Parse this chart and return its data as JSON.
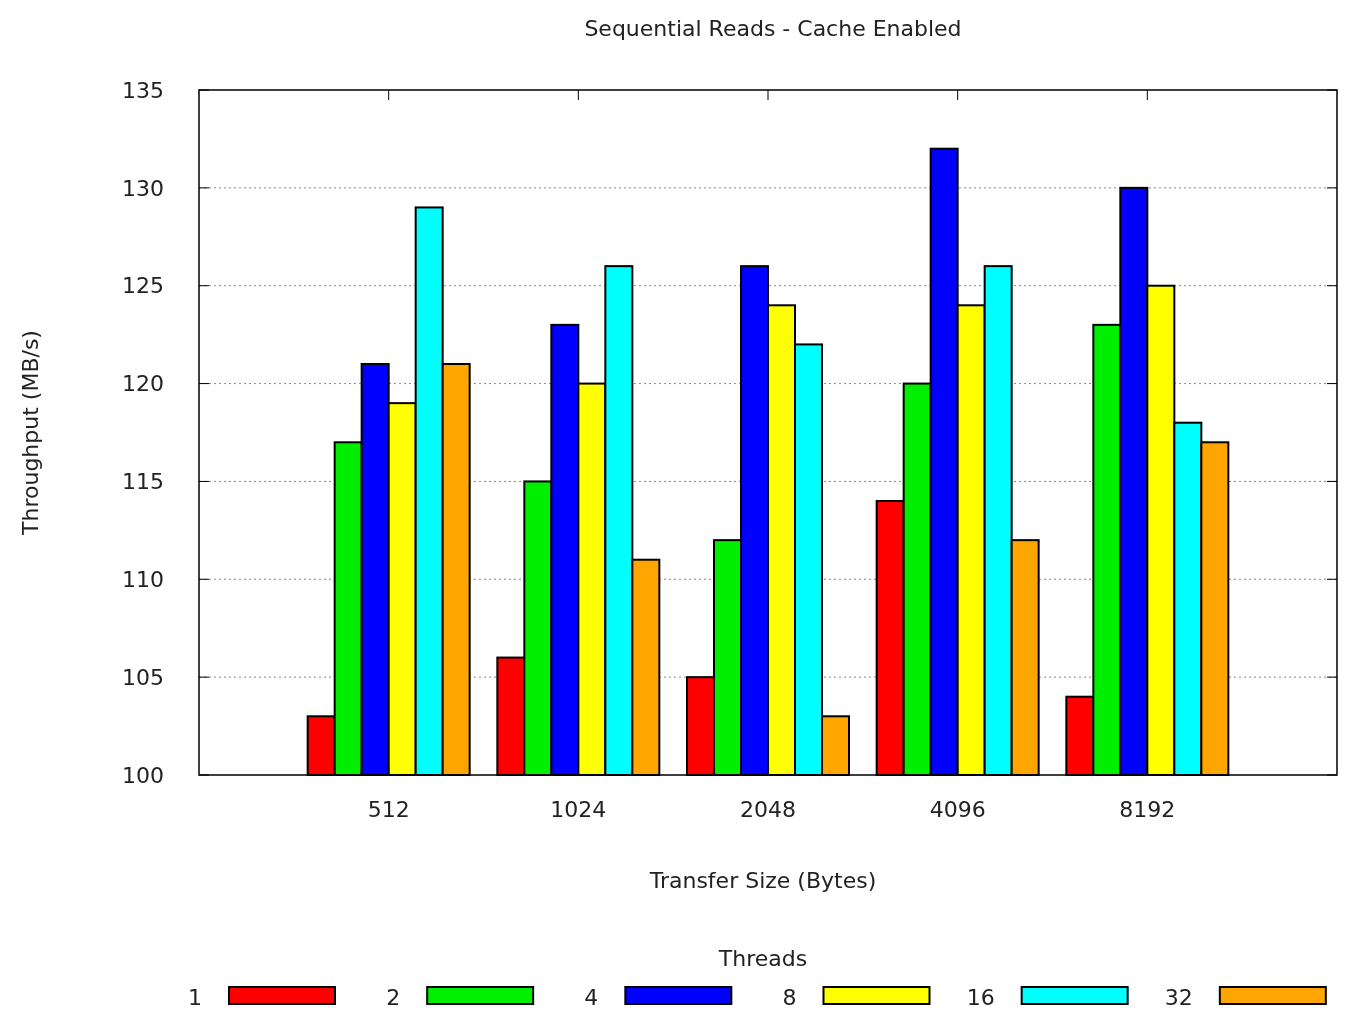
{
  "chart_data": {
    "type": "bar",
    "title": "Sequential Reads - Cache Enabled",
    "xlabel": "Transfer Size (Bytes)",
    "ylabel": "Throughput (MB/s)",
    "legend_title": "Threads",
    "categories": [
      "512",
      "1024",
      "2048",
      "4096",
      "8192"
    ],
    "series": [
      {
        "name": "1",
        "color": "#ff0000",
        "values": [
          103,
          106,
          105,
          114,
          104
        ]
      },
      {
        "name": "2",
        "color": "#00ee00",
        "values": [
          117,
          115,
          112,
          120,
          123
        ]
      },
      {
        "name": "4",
        "color": "#0000ff",
        "values": [
          121,
          123,
          126,
          132,
          130
        ]
      },
      {
        "name": "8",
        "color": "#ffff00",
        "values": [
          119,
          120,
          124,
          124,
          125
        ]
      },
      {
        "name": "16",
        "color": "#00ffff",
        "values": [
          129,
          126,
          122,
          126,
          118
        ]
      },
      {
        "name": "32",
        "color": "#ffa500",
        "values": [
          121,
          111,
          103,
          112,
          117
        ]
      }
    ],
    "ylim": [
      100,
      135
    ],
    "yticks": [
      100,
      105,
      110,
      115,
      120,
      125,
      130,
      135
    ],
    "grid": "y",
    "legend": "bottom"
  }
}
